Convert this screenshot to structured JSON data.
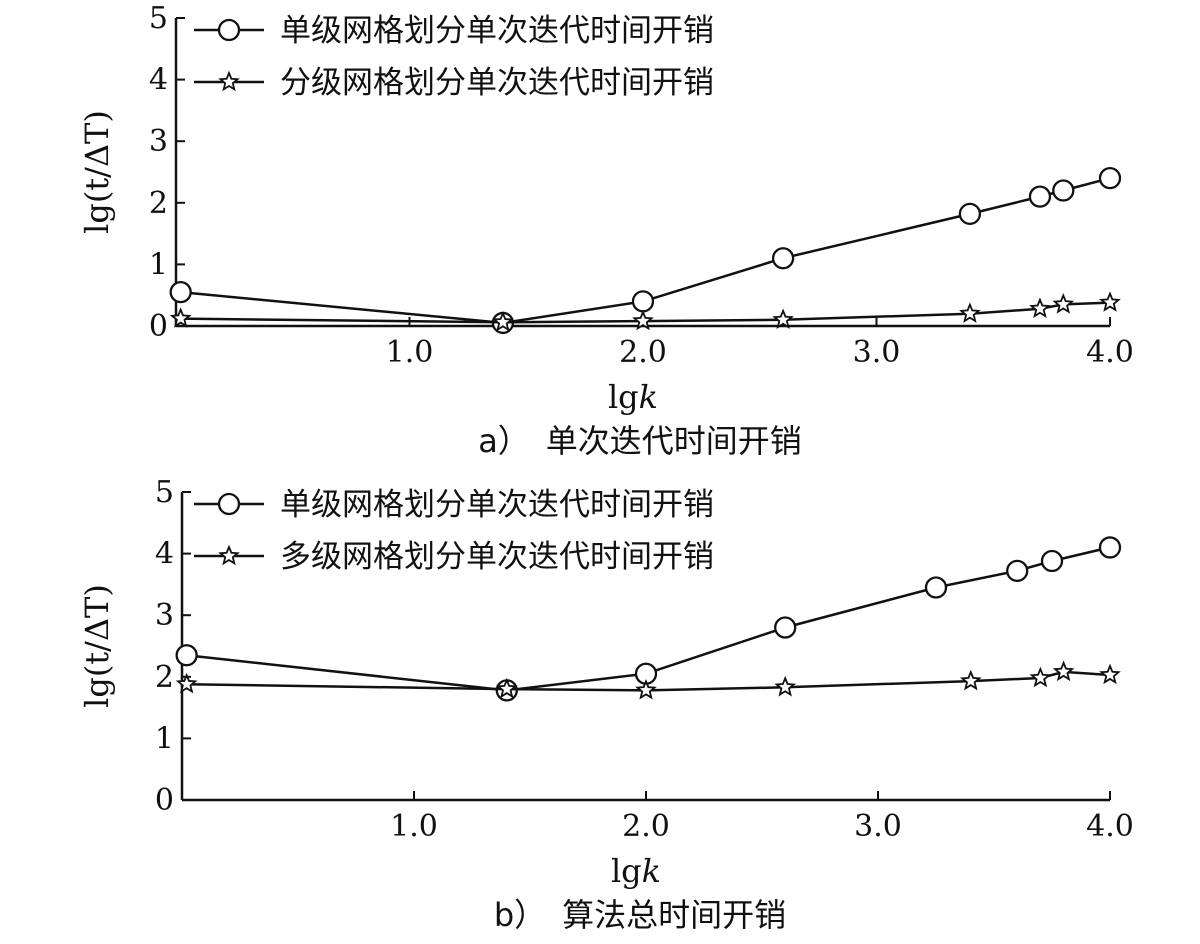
{
  "chart_data": [
    {
      "type": "line",
      "caption": "a）　单次迭代时间开销",
      "xlabel": "lgk",
      "ylabel": "lg(t/ΔT)",
      "xlim": [
        0.0,
        4.0
      ],
      "ylim": [
        0,
        5
      ],
      "x_ticks": [
        1.0,
        2.0,
        3.0,
        4.0
      ],
      "x_tick_labels": [
        "1.0",
        "2.0",
        "3.0",
        "4.0"
      ],
      "y_ticks": [
        0,
        1,
        2,
        3,
        4,
        5
      ],
      "y_tick_labels": [
        "0",
        "1",
        "2",
        "3",
        "4",
        "5"
      ],
      "legend_position": "top-left",
      "series": [
        {
          "name": "单级网格划分单次迭代时间开销",
          "marker": "circle",
          "x": [
            0.02,
            1.4,
            2.0,
            2.6,
            3.4,
            3.7,
            3.8,
            4.0
          ],
          "y": [
            0.55,
            0.05,
            0.4,
            1.1,
            1.82,
            2.1,
            2.2,
            2.4
          ]
        },
        {
          "name": "分级网格划分单次迭代时间开销",
          "marker": "star",
          "x": [
            0.02,
            1.4,
            2.0,
            2.6,
            3.4,
            3.7,
            3.8,
            4.0
          ],
          "y": [
            0.12,
            0.06,
            0.08,
            0.1,
            0.2,
            0.28,
            0.35,
            0.38
          ]
        }
      ]
    },
    {
      "type": "line",
      "caption": "b）　算法总时间开销",
      "xlabel": "lgk",
      "ylabel": "lg(t/ΔT)",
      "xlim": [
        0.0,
        4.0
      ],
      "ylim": [
        0,
        5
      ],
      "x_ticks": [
        1.0,
        2.0,
        3.0,
        4.0
      ],
      "x_tick_labels": [
        "1.0",
        "2.0",
        "3.0",
        "4.0"
      ],
      "y_ticks": [
        0,
        1,
        2,
        3,
        4,
        5
      ],
      "y_tick_labels": [
        "0",
        "1",
        "2",
        "3",
        "4",
        "5"
      ],
      "legend_position": "top-left",
      "series": [
        {
          "name": "单级网格划分单次迭代时间开销",
          "marker": "circle",
          "x": [
            0.02,
            1.4,
            2.0,
            2.6,
            3.25,
            3.6,
            3.75,
            4.0
          ],
          "y": [
            2.35,
            1.78,
            2.05,
            2.8,
            3.45,
            3.72,
            3.88,
            4.1
          ]
        },
        {
          "name": "多级网格划分单次迭代时间开销",
          "marker": "star",
          "x": [
            0.02,
            1.4,
            2.0,
            2.6,
            3.4,
            3.7,
            3.8,
            4.0
          ],
          "y": [
            1.88,
            1.8,
            1.78,
            1.83,
            1.93,
            1.98,
            2.08,
            2.03
          ]
        }
      ]
    }
  ]
}
